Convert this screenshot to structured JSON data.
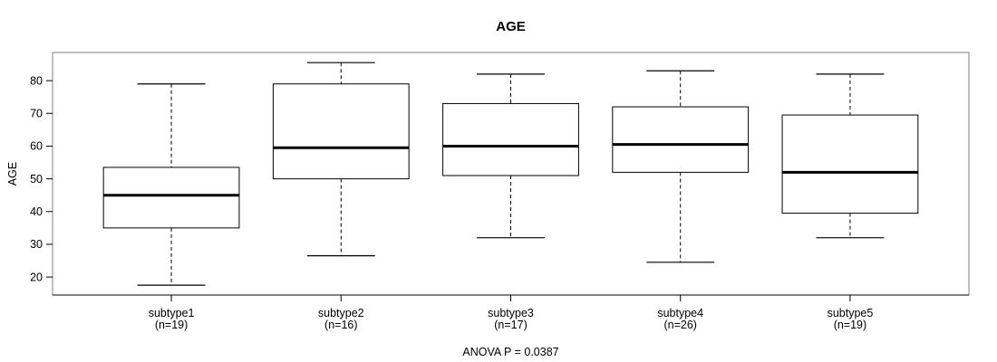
{
  "chart_data": {
    "type": "boxplot",
    "title": "AGE",
    "ylabel": "AGE",
    "xlabel": "",
    "annotation": "ANOVA P = 0.0387",
    "ylim": [
      14.5,
      88.6
    ],
    "yticks": [
      20,
      30,
      40,
      50,
      60,
      70,
      80
    ],
    "grid": false,
    "categories": [
      "subtype1",
      "subtype2",
      "subtype3",
      "subtype4",
      "subtype5"
    ],
    "counts": [
      19,
      16,
      17,
      26,
      19
    ],
    "boxes": [
      {
        "label": "subtype1",
        "sublabel": "(n=19)",
        "n": 19,
        "whisker_low": 17.5,
        "q1": 35,
        "median": 45,
        "q3": 53.5,
        "whisker_high": 79
      },
      {
        "label": "subtype2",
        "sublabel": "(n=16)",
        "n": 16,
        "whisker_low": 26.5,
        "q1": 50,
        "median": 59.5,
        "q3": 79,
        "whisker_high": 85.5
      },
      {
        "label": "subtype3",
        "sublabel": "(n=17)",
        "n": 17,
        "whisker_low": 32,
        "q1": 51,
        "median": 60,
        "q3": 73,
        "whisker_high": 82
      },
      {
        "label": "subtype4",
        "sublabel": "(n=26)",
        "n": 26,
        "whisker_low": 24.5,
        "q1": 52,
        "median": 60.5,
        "q3": 72,
        "whisker_high": 83
      },
      {
        "label": "subtype5",
        "sublabel": "(n=19)",
        "n": 19,
        "whisker_low": 32,
        "q1": 39.5,
        "median": 52,
        "q3": 69.5,
        "whisker_high": 82
      }
    ],
    "colors": {
      "frame": "#808080",
      "axis": "#000000",
      "box_stroke": "#000000",
      "box_fill": "#ffffff",
      "median": "#000000",
      "background": "#ffffff"
    }
  }
}
